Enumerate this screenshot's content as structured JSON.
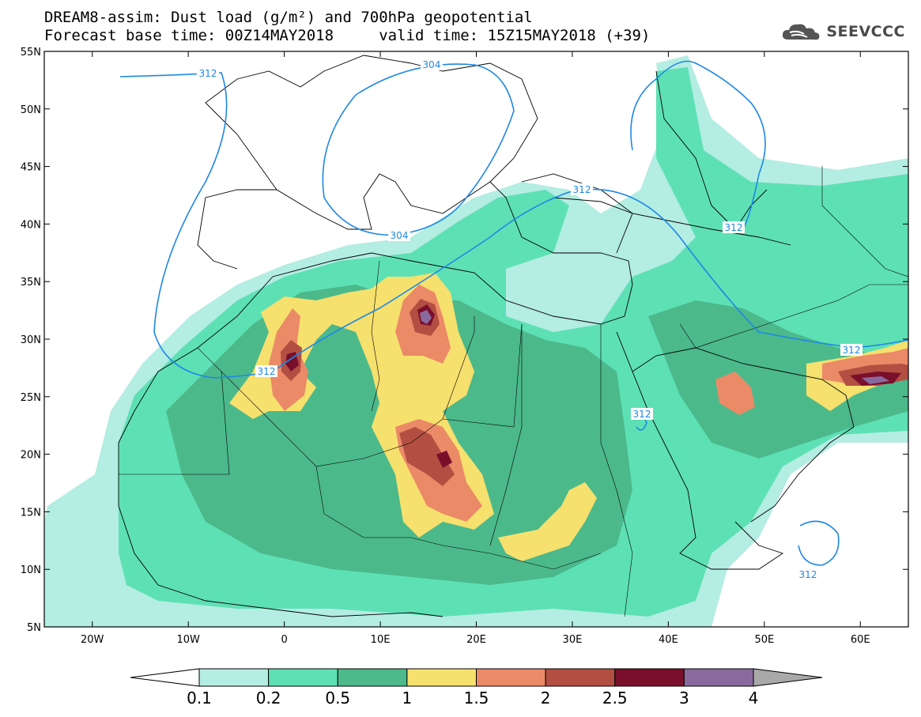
{
  "header": {
    "title_line1": "DREAM8-assim: Dust load (g/m²) and 700hPa geopotential",
    "title_line2": "Forecast base time: 00Z14MAY2018     valid time: 15Z15MAY2018 (+39)",
    "brand": "SEEVCCC",
    "brand_icon": "cloud-logo-icon"
  },
  "map": {
    "lon_range": [
      -25,
      65
    ],
    "lat_range": [
      5,
      55
    ],
    "lat_ticks": [
      "55N",
      "50N",
      "45N",
      "40N",
      "35N",
      "30N",
      "25N",
      "20N",
      "15N",
      "10N",
      "5N"
    ],
    "lon_ticks": [
      "20W",
      "10W",
      "0",
      "10E",
      "20E",
      "30E",
      "40E",
      "50E",
      "60E"
    ],
    "contour_color": "#1e88e5",
    "contour_labels": [
      "312",
      "304",
      "312",
      "304",
      "312",
      "312",
      "312",
      "312",
      "312"
    ]
  },
  "legend": {
    "labels": [
      "0.1",
      "0.2",
      "0.5",
      "1",
      "1.5",
      "2",
      "2.5",
      "3",
      "4"
    ],
    "colors": [
      "#ffffff",
      "#b4ede2",
      "#5ee0b5",
      "#4cb98b",
      "#f6e06e",
      "#eb8a67",
      "#b34f42",
      "#7a0f2c",
      "#8a6a9e",
      "#a9a9a9"
    ]
  }
}
